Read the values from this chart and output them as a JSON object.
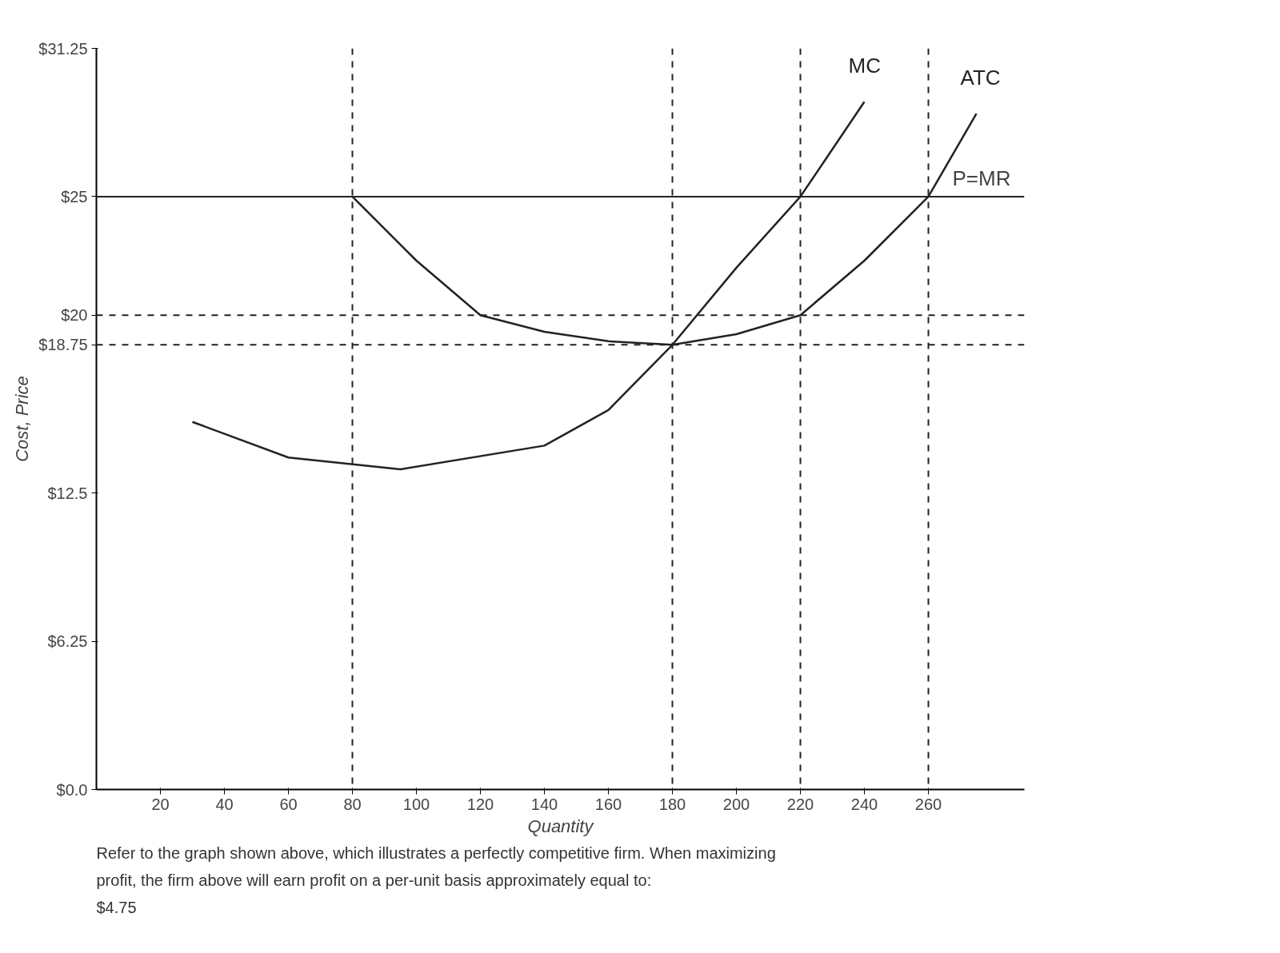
{
  "chart_data": {
    "type": "line",
    "xlabel": "Quantity",
    "ylabel": "Cost, Price",
    "xlim": [
      0,
      290
    ],
    "ylim": [
      0,
      31.25
    ],
    "xticks": [
      20,
      40,
      60,
      80,
      100,
      120,
      140,
      160,
      180,
      200,
      220,
      240,
      260
    ],
    "yticks": [
      {
        "value": 0,
        "label": "$0.0"
      },
      {
        "value": 6.25,
        "label": "$6.25"
      },
      {
        "value": 12.5,
        "label": "$12.5"
      },
      {
        "value": 18.75,
        "label": "$18.75"
      },
      {
        "value": 20,
        "label": "$20"
      },
      {
        "value": 25,
        "label": "$25"
      },
      {
        "value": 31.25,
        "label": "$31.25"
      }
    ],
    "series": [
      {
        "name": "MC",
        "color": "#222222",
        "x": [
          30,
          60,
          95,
          140,
          160,
          180,
          200,
          220,
          240
        ],
        "values": [
          15.5,
          14,
          13.5,
          14.5,
          16,
          18.75,
          22,
          25,
          29
        ]
      },
      {
        "name": "ATC",
        "color": "#222222",
        "x": [
          80,
          100,
          120,
          140,
          160,
          180,
          200,
          220,
          240,
          260,
          275
        ],
        "values": [
          25,
          22.3,
          20,
          19.3,
          18.9,
          18.75,
          19.2,
          20,
          22.3,
          25,
          28.5
        ]
      }
    ],
    "ref_lines": [
      {
        "axis": "y",
        "value": 25,
        "label": "P=MR",
        "color": "#222222",
        "line_style": "solid"
      },
      {
        "axis": "y",
        "value": 20,
        "color": "#222222",
        "line_style": "dashed"
      },
      {
        "axis": "y",
        "value": 18.75,
        "color": "#222222",
        "line_style": "dashed"
      },
      {
        "axis": "x",
        "value": 80,
        "color": "#222222",
        "line_style": "dashed"
      },
      {
        "axis": "x",
        "value": 180,
        "color": "#222222",
        "line_style": "dashed"
      },
      {
        "axis": "x",
        "value": 220,
        "color": "#222222",
        "line_style": "dashed"
      },
      {
        "axis": "x",
        "value": 260,
        "color": "#222222",
        "line_style": "dashed"
      }
    ],
    "grid": false,
    "marker": "none",
    "line_style": "solid",
    "annotations": [
      "Refer to the graph shown above, which illustrates  a perfectly competitive firm. When maximizing profit, the firm above will earn profit on a per-unit basis approximately equal to:",
      "$4.75"
    ]
  }
}
